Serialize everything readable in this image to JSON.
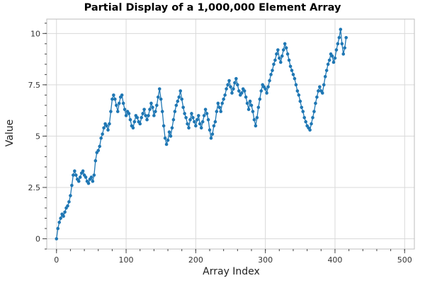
{
  "chart_data": {
    "type": "line",
    "title": "Partial Display of a 1,000,000 Element Array",
    "xlabel": "Array Index",
    "ylabel": "Value",
    "xlim": [
      -14,
      514
    ],
    "ylim": [
      -0.5,
      10.7
    ],
    "xticks": [
      0,
      100,
      200,
      300,
      400,
      500
    ],
    "xtick_labels": [
      "0",
      "100",
      "200",
      "300",
      "400",
      "500"
    ],
    "yticks": [
      0,
      2.5,
      5,
      7.5,
      10
    ],
    "ytick_labels": [
      "0",
      "2.5",
      "5",
      "7.5",
      "10"
    ],
    "grid": true,
    "series_color": "#1f77b4",
    "x_step": 2,
    "series": [
      {
        "name": "Value",
        "values": [
          0.0,
          0.5,
          0.8,
          1.0,
          1.2,
          1.1,
          1.3,
          1.5,
          1.6,
          1.8,
          2.1,
          2.6,
          3.1,
          3.3,
          3.1,
          2.9,
          2.8,
          3.0,
          3.2,
          3.3,
          3.1,
          3.0,
          2.8,
          2.7,
          2.9,
          3.0,
          2.8,
          3.1,
          3.8,
          4.2,
          4.3,
          4.5,
          4.9,
          5.1,
          5.4,
          5.6,
          5.5,
          5.3,
          5.6,
          6.2,
          6.8,
          7.0,
          6.8,
          6.5,
          6.2,
          6.6,
          6.9,
          7.0,
          6.6,
          6.3,
          6.0,
          6.2,
          6.1,
          5.8,
          5.5,
          5.4,
          5.7,
          6.0,
          5.9,
          5.7,
          5.6,
          5.9,
          6.1,
          6.3,
          6.0,
          5.8,
          6.0,
          6.3,
          6.6,
          6.4,
          6.0,
          6.2,
          6.5,
          6.9,
          7.3,
          6.8,
          6.2,
          5.5,
          4.9,
          4.6,
          4.8,
          5.2,
          5.0,
          5.4,
          5.8,
          6.2,
          6.5,
          6.7,
          6.9,
          7.2,
          6.8,
          6.4,
          6.1,
          5.9,
          5.6,
          5.4,
          5.8,
          6.1,
          5.9,
          5.7,
          5.5,
          5.8,
          6.0,
          5.6,
          5.4,
          5.7,
          6.0,
          6.3,
          6.1,
          5.8,
          5.3,
          4.9,
          5.1,
          5.5,
          5.7,
          6.2,
          6.6,
          6.4,
          6.2,
          6.6,
          6.8,
          7.0,
          7.3,
          7.5,
          7.7,
          7.4,
          7.1,
          7.3,
          7.6,
          7.8,
          7.5,
          7.2,
          7.0,
          7.1,
          7.3,
          7.2,
          6.9,
          6.6,
          6.3,
          6.7,
          6.5,
          6.2,
          5.8,
          5.5,
          5.9,
          6.4,
          6.8,
          7.2,
          7.5,
          7.4,
          7.3,
          7.1,
          7.4,
          7.7,
          8.0,
          8.2,
          8.5,
          8.7,
          9.0,
          9.2,
          8.8,
          8.6,
          8.9,
          9.2,
          9.5,
          9.3,
          9.0,
          8.7,
          8.4,
          8.2,
          8.0,
          7.8,
          7.5,
          7.2,
          7.0,
          6.7,
          6.4,
          6.2,
          5.9,
          5.7,
          5.5,
          5.4,
          5.3,
          5.6,
          5.9,
          6.2,
          6.6,
          6.9,
          7.2,
          7.4,
          7.2,
          7.1,
          7.5,
          7.9,
          8.2,
          8.5,
          8.7,
          9.0,
          8.9,
          8.6,
          8.8,
          9.2,
          9.5,
          9.8,
          10.2,
          9.5,
          9.0,
          9.3,
          9.8
        ]
      }
    ]
  }
}
